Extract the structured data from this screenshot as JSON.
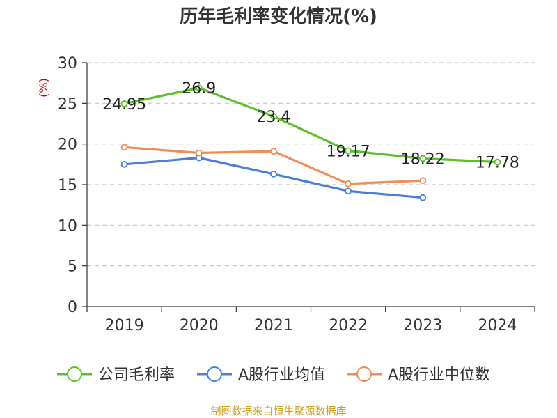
{
  "chart_data": {
    "type": "line",
    "title": "历年毛利率变化情况(%)",
    "ylabel": "(%)",
    "xlabel": "",
    "categories": [
      "2019",
      "2020",
      "2021",
      "2022",
      "2023",
      "2024"
    ],
    "ylim": [
      0,
      30
    ],
    "yticks": [
      0,
      5,
      10,
      15,
      20,
      25,
      30
    ],
    "grid": "horizontal-dashed",
    "legend_position": "bottom",
    "series": [
      {
        "name": "公司毛利率",
        "color": "#5cc02c",
        "values": [
          24.95,
          26.9,
          23.4,
          19.17,
          18.22,
          17.78
        ],
        "labels": [
          "24.95",
          "26.9",
          "23.4",
          "19.17",
          "18.22",
          "17.78"
        ]
      },
      {
        "name": "A股行业均值",
        "color": "#4a7fd9",
        "values": [
          17.5,
          18.3,
          16.3,
          14.2,
          13.4,
          null
        ]
      },
      {
        "name": "A股行业中位数",
        "color": "#f08c55",
        "values": [
          19.6,
          18.9,
          19.1,
          15.1,
          15.5,
          null
        ]
      }
    ]
  },
  "footer": {
    "source": "制图数据来自恒生聚源数据库"
  }
}
